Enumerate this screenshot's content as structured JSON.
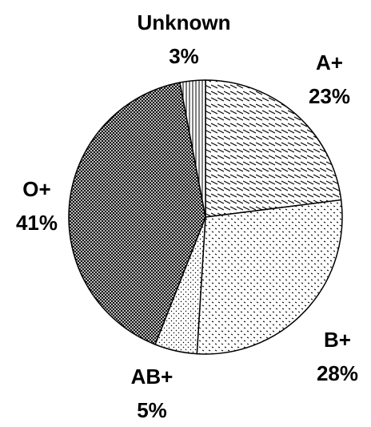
{
  "chart_data": {
    "type": "pie",
    "categories": [
      "A+",
      "B+",
      "AB+",
      "O+",
      "Unknown"
    ],
    "values": [
      23,
      28,
      5,
      41,
      3
    ],
    "value_labels": [
      "23%",
      "28%",
      "5%",
      "41%",
      "3%"
    ]
  }
}
